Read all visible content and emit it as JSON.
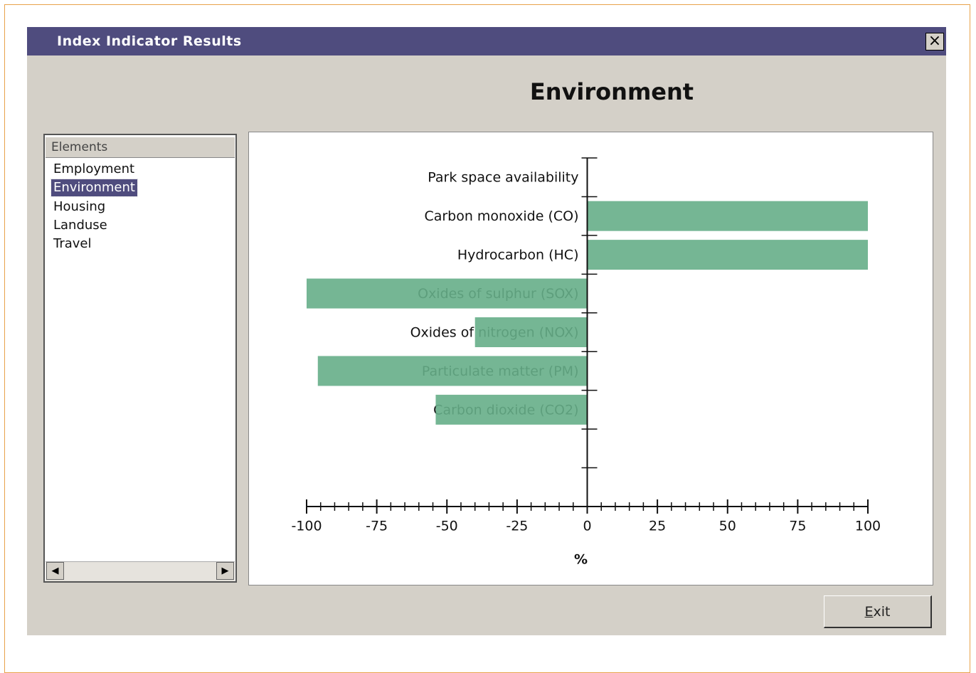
{
  "window": {
    "title": "Index Indicator Results",
    "close": "×"
  },
  "sidebar": {
    "header": "Elements",
    "items": [
      "Employment",
      "Environment",
      "Housing",
      "Landuse",
      "Travel"
    ],
    "selected_index": 1
  },
  "chart_data": {
    "type": "hbar",
    "title": "Environment",
    "xlabel": "%",
    "categories": [
      "Park space availability",
      "Carbon monoxide (CO)",
      "Hydrocarbon (HC)",
      "Oxides of sulphur (SOX)",
      "Oxides of nitrogen (NOX)",
      "Particulate matter (PM)",
      "Carbon dioxide (CO2)",
      null,
      null
    ],
    "values": [
      0,
      100,
      100,
      -100,
      -40,
      -96,
      -54,
      null,
      null
    ],
    "color": "#66ae88",
    "xlim": [
      -100,
      100
    ],
    "xticks": [
      -100,
      -75,
      -50,
      -25,
      0,
      25,
      50,
      75,
      100
    ],
    "xminor_divisions": 5
  },
  "button": {
    "label": "Exit"
  }
}
